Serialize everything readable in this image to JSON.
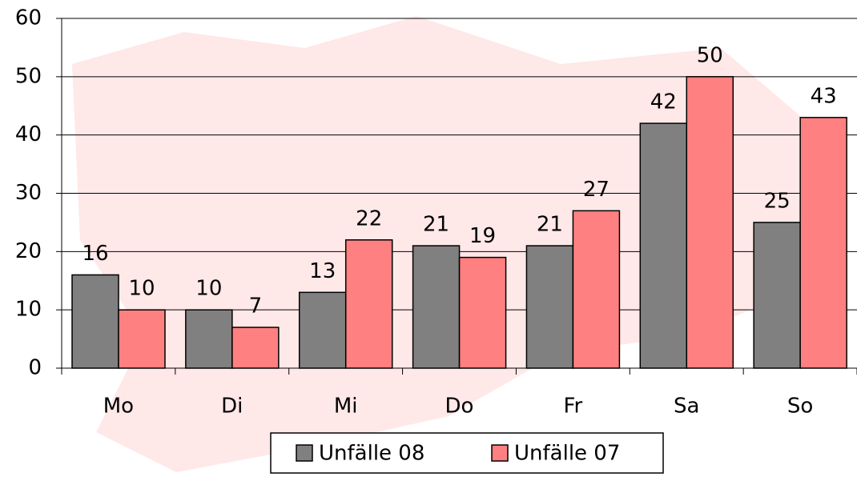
{
  "chart_data": {
    "type": "bar",
    "categories": [
      "Mo",
      "Di",
      "Mi",
      "Do",
      "Fr",
      "Sa",
      "So"
    ],
    "series": [
      {
        "name": "Unfälle 08",
        "color": "#808080",
        "values": [
          16,
          10,
          13,
          21,
          21,
          42,
          25
        ]
      },
      {
        "name": "Unfälle 07",
        "color": "#ff8080",
        "values": [
          10,
          7,
          22,
          19,
          27,
          50,
          43
        ]
      }
    ],
    "ylim": [
      0,
      60
    ],
    "yticks": [
      0,
      10,
      20,
      30,
      40,
      50,
      60
    ],
    "grid": true,
    "legend": "bottom"
  }
}
